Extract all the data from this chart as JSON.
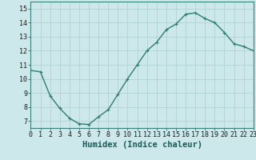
{
  "x": [
    0,
    1,
    2,
    3,
    4,
    5,
    6,
    7,
    8,
    9,
    10,
    11,
    12,
    13,
    14,
    15,
    16,
    17,
    18,
    19,
    20,
    21,
    22,
    23
  ],
  "y": [
    10.6,
    10.5,
    8.8,
    7.9,
    7.2,
    6.8,
    6.75,
    7.3,
    7.8,
    8.9,
    10.0,
    11.0,
    12.0,
    12.6,
    13.5,
    13.9,
    14.6,
    14.7,
    14.3,
    14.0,
    13.3,
    12.5,
    12.3,
    12.0
  ],
  "line_color": "#2e7d6e",
  "marker": "+",
  "marker_size": 3.5,
  "bg_color": "#cce8ea",
  "grid_color": "#aacfd2",
  "xlabel": "Humidex (Indice chaleur)",
  "xlim": [
    0,
    23
  ],
  "ylim": [
    6.5,
    15.5
  ],
  "yticks": [
    7,
    8,
    9,
    10,
    11,
    12,
    13,
    14,
    15
  ],
  "xticks": [
    0,
    1,
    2,
    3,
    4,
    5,
    6,
    7,
    8,
    9,
    10,
    11,
    12,
    13,
    14,
    15,
    16,
    17,
    18,
    19,
    20,
    21,
    22,
    23
  ],
  "tick_fontsize": 6,
  "xlabel_fontsize": 7.5,
  "line_width": 1.0
}
